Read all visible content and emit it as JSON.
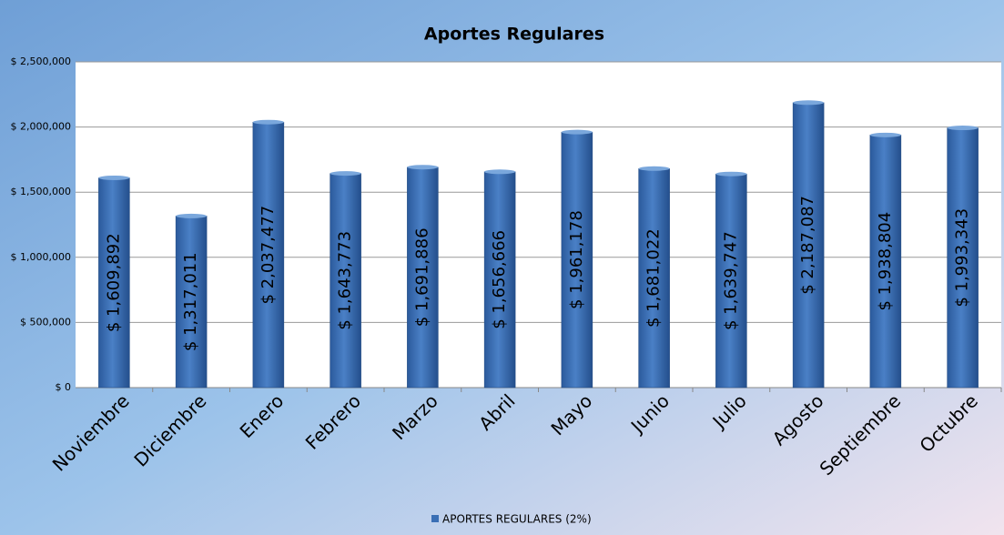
{
  "chart_data": {
    "type": "bar",
    "title": "Aportes  Regulares",
    "categories": [
      "Noviembre",
      "Diciembre",
      "Enero",
      "Febrero",
      "Marzo",
      "Abril",
      "Mayo",
      "Junio",
      "Julio",
      "Agosto",
      "Septiembre",
      "Octubre"
    ],
    "series": [
      {
        "name": "APORTES REGULARES (2%)",
        "color": "#3a6fb5",
        "values": [
          1609892,
          1317011,
          2037477,
          1643773,
          1691886,
          1656666,
          1961178,
          1681022,
          1639747,
          2187087,
          1938804,
          1993343
        ],
        "value_labels": [
          "$ 1,609,892",
          "$ 1,317,011",
          "$ 2,037,477",
          "$ 1,643,773",
          "$ 1,691,886",
          "$ 1,656,666",
          "$ 1,961,178",
          "$ 1,681,022",
          "$ 1,639,747",
          "$ 2,187,087",
          "$ 1,938,804",
          "$ 1,993,343"
        ]
      }
    ],
    "ylim": [
      0,
      2500000
    ],
    "yticks": [
      {
        "value": 0,
        "label": "$ 0"
      },
      {
        "value": 500000,
        "label": "$ 500,000"
      },
      {
        "value": 1000000,
        "label": "$ 1,000,000"
      },
      {
        "value": 1500000,
        "label": "$ 1,500,000"
      },
      {
        "value": 2000000,
        "label": "$ 2,000,000"
      },
      {
        "value": 2500000,
        "label": "$ 2,500,000"
      }
    ],
    "grid": true,
    "legend": "bottom"
  }
}
